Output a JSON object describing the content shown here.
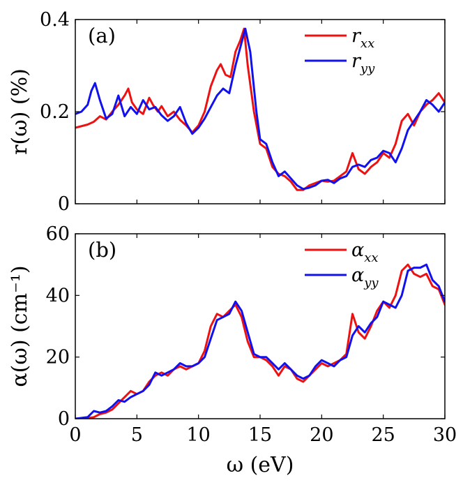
{
  "chart_data": [
    {
      "type": "line",
      "panel_label": "(a)",
      "ylabel": "r(ω) (%)",
      "xlabel": "",
      "xlim": [
        0,
        30
      ],
      "ylim": [
        0,
        0.4
      ],
      "xticks": [
        0,
        5,
        10,
        15,
        20,
        25,
        30
      ],
      "yticks": [
        0,
        0.2,
        0.4
      ],
      "ytick_labels": [
        "0",
        "0.2",
        "0.4"
      ],
      "xtick_labels_shown": false,
      "legend_position": "top-right",
      "series": [
        {
          "name": "r_xx",
          "legend_base": "r",
          "legend_sub": "xx",
          "color": "#ee1111",
          "x": [
            0,
            1,
            1.5,
            2,
            2.5,
            3,
            3.5,
            4,
            4.3,
            4.6,
            5,
            5.5,
            6,
            6.3,
            6.7,
            7,
            7.5,
            8,
            8.5,
            9,
            9.5,
            10,
            10.5,
            11,
            11.5,
            11.8,
            12.2,
            12.6,
            13,
            13.4,
            13.7,
            14,
            14.5,
            15,
            15.5,
            16,
            16.5,
            17,
            17.5,
            18,
            18.5,
            19,
            19.5,
            20,
            20.5,
            21,
            21.5,
            22,
            22.5,
            23,
            23.5,
            24,
            24.5,
            25,
            25.5,
            26,
            26.5,
            27,
            27.5,
            28,
            28.5,
            29,
            29.5,
            30
          ],
          "y": [
            0.165,
            0.172,
            0.178,
            0.19,
            0.183,
            0.2,
            0.215,
            0.235,
            0.25,
            0.22,
            0.205,
            0.195,
            0.23,
            0.215,
            0.2,
            0.212,
            0.19,
            0.2,
            0.182,
            0.17,
            0.155,
            0.17,
            0.2,
            0.255,
            0.29,
            0.303,
            0.28,
            0.275,
            0.33,
            0.355,
            0.38,
            0.3,
            0.2,
            0.13,
            0.12,
            0.08,
            0.065,
            0.06,
            0.048,
            0.03,
            0.03,
            0.04,
            0.045,
            0.05,
            0.048,
            0.05,
            0.06,
            0.07,
            0.11,
            0.075,
            0.065,
            0.08,
            0.09,
            0.11,
            0.1,
            0.13,
            0.18,
            0.195,
            0.17,
            0.2,
            0.215,
            0.225,
            0.24,
            0.22
          ]
        },
        {
          "name": "r_yy",
          "legend_base": "r",
          "legend_sub": "yy",
          "color": "#1111ee",
          "x": [
            0,
            0.5,
            1,
            1.3,
            1.6,
            2,
            2.5,
            3,
            3.5,
            4,
            4.5,
            5,
            5.5,
            6,
            6.5,
            7,
            7.5,
            8,
            8.5,
            9,
            9.5,
            10,
            10.5,
            11,
            11.5,
            12,
            12.5,
            13,
            13.4,
            13.8,
            14.2,
            14.7,
            15,
            15.5,
            16,
            16.5,
            17,
            17.5,
            18,
            18.5,
            19,
            19.5,
            20,
            20.5,
            21,
            21.5,
            22,
            22.5,
            23,
            23.5,
            24,
            24.5,
            25,
            25.5,
            26,
            26.5,
            27,
            27.5,
            28,
            28.5,
            29,
            29.5,
            30
          ],
          "y": [
            0.195,
            0.2,
            0.215,
            0.245,
            0.262,
            0.225,
            0.185,
            0.195,
            0.235,
            0.19,
            0.21,
            0.195,
            0.225,
            0.205,
            0.21,
            0.192,
            0.18,
            0.19,
            0.21,
            0.175,
            0.152,
            0.165,
            0.185,
            0.21,
            0.235,
            0.25,
            0.24,
            0.3,
            0.34,
            0.38,
            0.33,
            0.2,
            0.14,
            0.13,
            0.09,
            0.06,
            0.07,
            0.055,
            0.04,
            0.032,
            0.035,
            0.04,
            0.05,
            0.052,
            0.045,
            0.055,
            0.06,
            0.08,
            0.085,
            0.08,
            0.095,
            0.1,
            0.115,
            0.11,
            0.09,
            0.12,
            0.16,
            0.18,
            0.2,
            0.225,
            0.215,
            0.2,
            0.22
          ]
        }
      ]
    },
    {
      "type": "line",
      "panel_label": "(b)",
      "ylabel": "α(ω) (cm⁻¹)",
      "xlabel": "ω (eV)",
      "xlim": [
        0,
        30
      ],
      "ylim": [
        0,
        60
      ],
      "xticks": [
        0,
        5,
        10,
        15,
        20,
        25,
        30
      ],
      "yticks": [
        0,
        20,
        40,
        60
      ],
      "xtick_labels": [
        "0",
        "5",
        "10",
        "15",
        "20",
        "25",
        "30"
      ],
      "ytick_labels": [
        "0",
        "20",
        "40",
        "60"
      ],
      "legend_position": "top-right",
      "series": [
        {
          "name": "α_xx",
          "legend_base": "α",
          "legend_sub": "xx",
          "color": "#ee1111",
          "x": [
            0,
            1,
            1.5,
            2,
            2.5,
            3,
            3.5,
            4,
            4.5,
            5,
            5.5,
            6,
            6.5,
            7,
            7.5,
            8,
            8.5,
            9,
            9.5,
            10,
            10.5,
            11,
            11.5,
            12,
            12.5,
            13,
            13.5,
            14,
            14.5,
            15,
            15.5,
            16,
            16.5,
            17,
            17.5,
            18,
            18.5,
            19,
            19.5,
            20,
            20.5,
            21,
            21.5,
            22,
            22.5,
            23,
            23.5,
            24,
            24.5,
            25,
            25.5,
            26,
            26.5,
            27,
            27.5,
            28,
            28.5,
            29,
            29.5,
            30
          ],
          "y": [
            0,
            0.2,
            0.5,
            1.5,
            2,
            3,
            5,
            7,
            9,
            8,
            9,
            12,
            14,
            15,
            14,
            16,
            17,
            16,
            17,
            18,
            22,
            30,
            34,
            33,
            35,
            37,
            33,
            25,
            20,
            20,
            19,
            17,
            14,
            17,
            16,
            13,
            12,
            14,
            16,
            18,
            17,
            18,
            19,
            21,
            34,
            28,
            26,
            30,
            35,
            38,
            36,
            40,
            48,
            50,
            47,
            46,
            47,
            43,
            42,
            37
          ]
        },
        {
          "name": "α_yy",
          "legend_base": "α",
          "legend_sub": "yy",
          "color": "#1111ee",
          "x": [
            0,
            1,
            1.5,
            2,
            2.5,
            3,
            3.5,
            4,
            4.5,
            5,
            5.5,
            6,
            6.5,
            7,
            7.5,
            8,
            8.5,
            9,
            9.5,
            10,
            10.5,
            11,
            11.5,
            12,
            12.5,
            13,
            13.5,
            14,
            14.5,
            15,
            15.5,
            16,
            16.5,
            17,
            17.5,
            18,
            18.5,
            19,
            19.5,
            20,
            20.5,
            21,
            21.5,
            22,
            22.5,
            23,
            23.5,
            24,
            24.5,
            25,
            25.5,
            26,
            26.5,
            27,
            27.5,
            28,
            28.5,
            29,
            29.5,
            30
          ],
          "y": [
            0,
            0.5,
            2.5,
            2,
            2.5,
            4,
            6,
            5.5,
            7,
            8,
            9,
            11,
            15,
            14,
            15,
            16,
            18,
            17,
            17,
            18,
            20,
            26,
            32,
            33,
            34,
            38,
            35,
            28,
            21,
            20,
            20,
            18,
            16,
            18,
            16,
            14,
            13,
            14,
            17,
            19,
            18,
            17,
            19,
            20,
            27,
            30,
            28,
            31,
            33,
            38,
            37,
            36,
            40,
            48,
            49,
            49,
            50,
            45,
            43,
            38
          ]
        }
      ]
    }
  ]
}
